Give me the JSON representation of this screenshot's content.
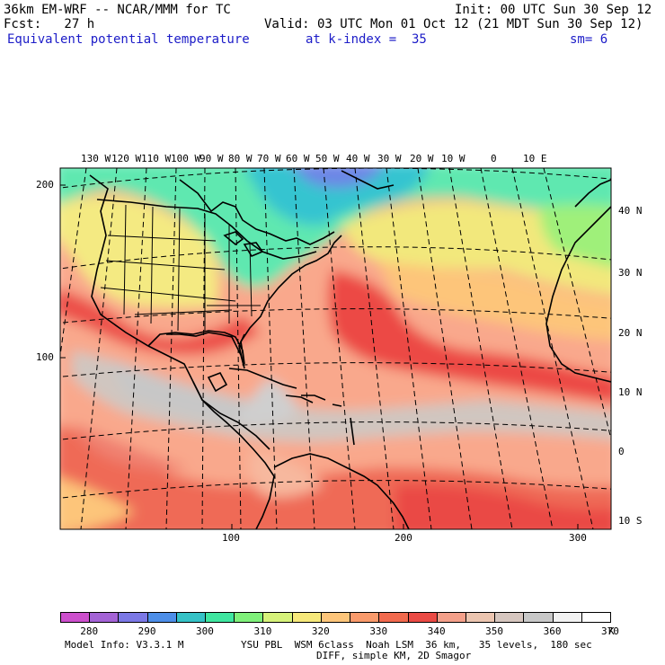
{
  "header": {
    "line1_left": "36km EM-WRF -- NCAR/MMM for TC",
    "line1_right": "Init: 00 UTC Sun 30 Sep 12",
    "line2_left": "Fcst:   27 h",
    "line2_right": "Valid: 03 UTC Mon 01 Oct 12 (21 MDT Sun 30 Sep 12)",
    "line3_field": "Equivalent potential temperature",
    "line3_level": "at k-index =  35",
    "line3_sm": "sm= 6"
  },
  "map": {
    "top_lon_labels": [
      "130 W",
      "120 W",
      "110 W",
      "100 W",
      "90 W",
      "80 W",
      "70 W",
      "60 W",
      "50 W",
      "40 W",
      "30 W",
      "20 W",
      "10 W",
      "0",
      "10 E"
    ],
    "right_lat_labels": [
      "40 N",
      "30 N",
      "20 N",
      "10 N",
      "0",
      "10 S"
    ],
    "left_grid_labels": [
      "200",
      "100"
    ],
    "bottom_grid_labels": [
      "100",
      "200",
      "300"
    ]
  },
  "colorbar": {
    "labels": [
      "280",
      "290",
      "300",
      "310",
      "320",
      "330",
      "340",
      "350",
      "360",
      "370"
    ],
    "unit": "K",
    "colors": [
      "#cc4fcc",
      "#a463d6",
      "#7b78e6",
      "#4d8ee8",
      "#35c2c6",
      "#3fe6a0",
      "#7ff07a",
      "#d6f27a",
      "#f6e87a",
      "#fdc57a",
      "#f99a6b",
      "#f26a4e",
      "#ea4a44",
      "#f4a08a",
      "#ecc5b0",
      "#d6c6bf",
      "#c8c8c8",
      "#f2f2f2",
      "#ffffff"
    ]
  },
  "footer": {
    "line1_left": "Model Info: V3.3.1 M",
    "line1_right": "YSU PBL  WSM 6class  Noah LSM  36 km,   35 levels,  180 sec",
    "line2_right": "DIFF, simple KM, 2D Smagor"
  }
}
